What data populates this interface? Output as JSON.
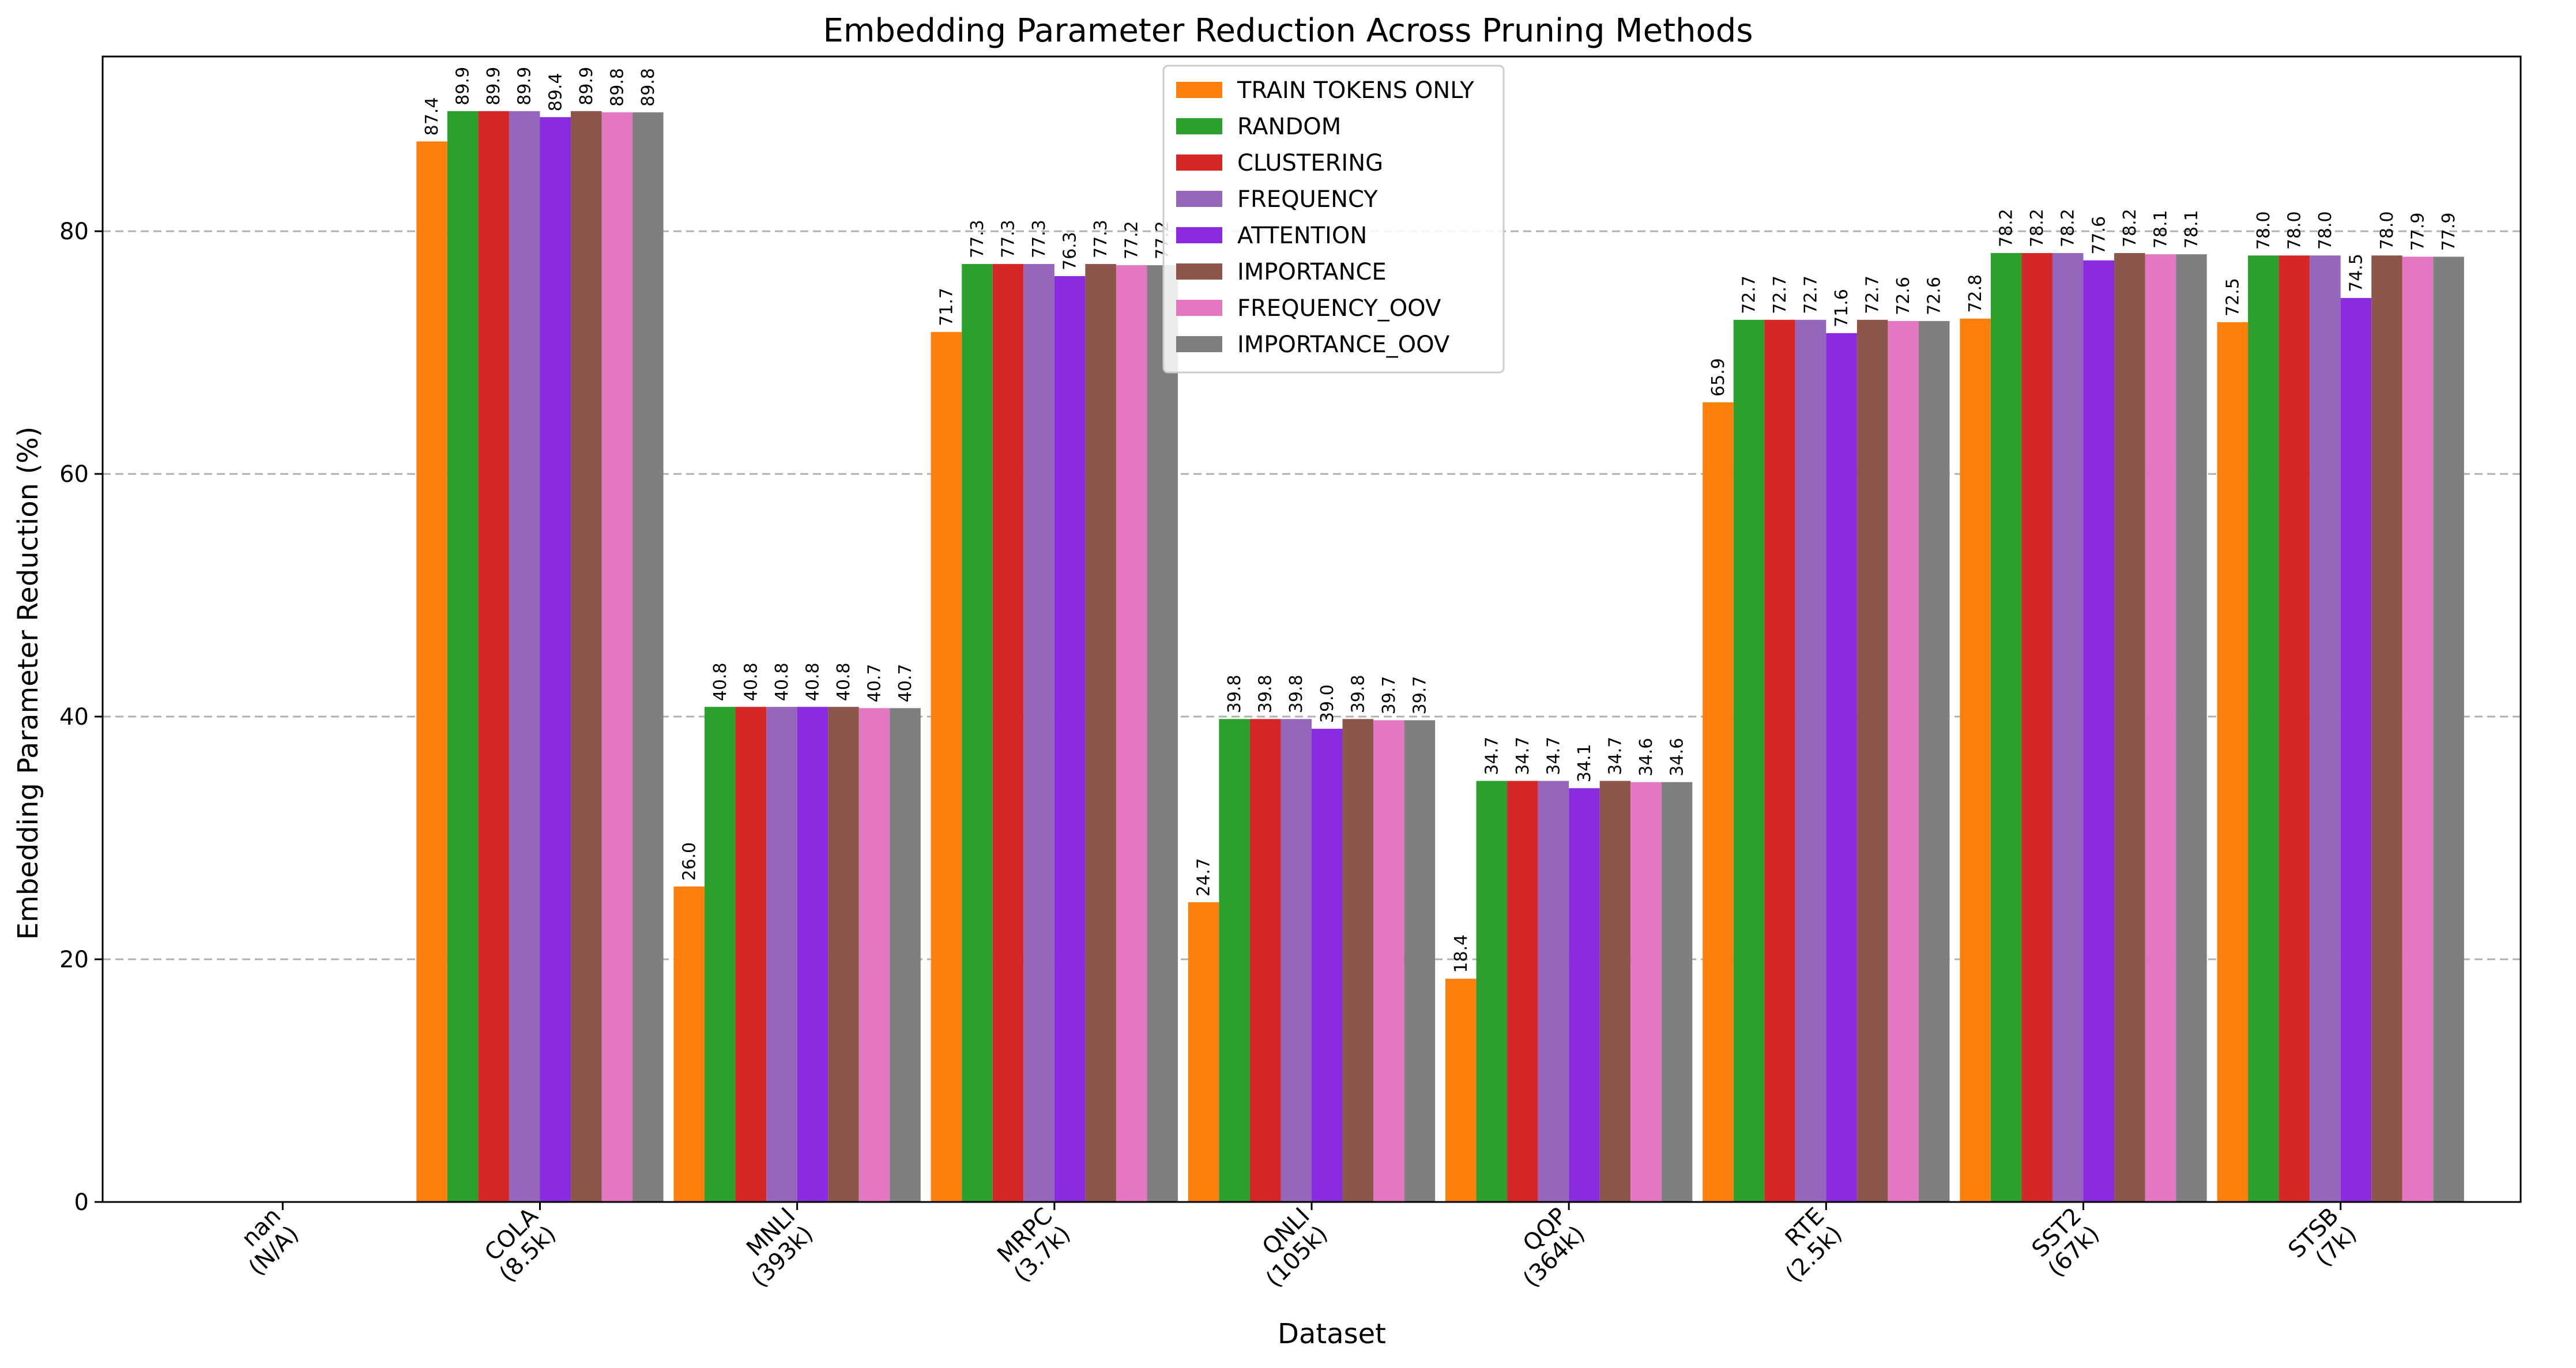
{
  "chart_data": {
    "type": "bar",
    "title": "Embedding Parameter Reduction Across Pruning Methods",
    "xlabel": "Dataset",
    "ylabel": "Embedding Parameter Reduction (%)",
    "ylim": [
      0,
      94.4
    ],
    "yticks": [
      0,
      20,
      40,
      60,
      80
    ],
    "grid": "y-dashed",
    "legend_position": "top-center",
    "categories": [
      [
        "nan",
        "(N/A)"
      ],
      [
        "COLA",
        "(8.5k)"
      ],
      [
        "MNLI",
        "(393k)"
      ],
      [
        "MRPC",
        "(3.7k)"
      ],
      [
        "QNLI",
        "(105k)"
      ],
      [
        "QQP",
        "(364k)"
      ],
      [
        "RTE",
        "(2.5k)"
      ],
      [
        "SST2",
        "(67k)"
      ],
      [
        "STSB",
        "(7k)"
      ]
    ],
    "series": [
      {
        "name": "TRAIN TOKENS ONLY",
        "color": "#ff7f0e",
        "values": [
          null,
          87.4,
          26.0,
          71.7,
          24.7,
          18.4,
          65.9,
          72.8,
          72.5
        ]
      },
      {
        "name": "RANDOM",
        "color": "#2ca02c",
        "values": [
          null,
          89.9,
          40.8,
          77.3,
          39.8,
          34.7,
          72.7,
          78.2,
          78.0
        ]
      },
      {
        "name": "CLUSTERING",
        "color": "#d62728",
        "values": [
          null,
          89.9,
          40.8,
          77.3,
          39.8,
          34.7,
          72.7,
          78.2,
          78.0
        ]
      },
      {
        "name": "FREQUENCY",
        "color": "#9467bd",
        "values": [
          null,
          89.9,
          40.8,
          77.3,
          39.8,
          34.7,
          72.7,
          78.2,
          78.0
        ]
      },
      {
        "name": "ATTENTION",
        "color": "#8a2be2",
        "values": [
          null,
          89.4,
          40.8,
          76.3,
          39.0,
          34.1,
          71.6,
          77.6,
          74.5
        ]
      },
      {
        "name": "IMPORTANCE",
        "color": "#8c564b",
        "values": [
          null,
          89.9,
          40.8,
          77.3,
          39.8,
          34.7,
          72.7,
          78.2,
          78.0
        ]
      },
      {
        "name": "FREQUENCY_OOV",
        "color": "#e377c2",
        "values": [
          null,
          89.8,
          40.7,
          77.2,
          39.7,
          34.6,
          72.6,
          78.1,
          77.9
        ]
      },
      {
        "name": "IMPORTANCE_OOV",
        "color": "#7f7f7f",
        "values": [
          null,
          89.8,
          40.7,
          77.2,
          39.7,
          34.6,
          72.6,
          78.1,
          77.9
        ]
      }
    ]
  }
}
